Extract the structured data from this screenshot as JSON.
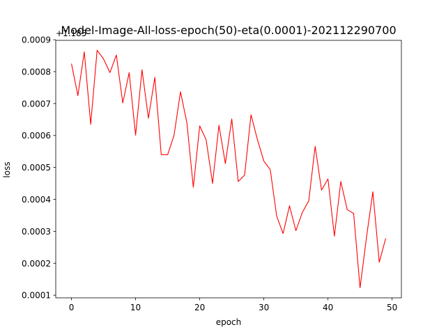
{
  "chart_data": {
    "type": "line",
    "title": "Model-Image-All-loss-epoch(50)-eta(0.0001)-202112290700",
    "xlabel": "epoch",
    "ylabel": "loss",
    "y_offset_label": "+1.185",
    "xlim": [
      -2.45,
      51.45
    ],
    "ylim": [
      9.17e-05,
      0.000898
    ],
    "x_ticks": [
      0,
      10,
      20,
      30,
      40,
      50
    ],
    "y_ticks": [
      0.0001,
      0.0002,
      0.0003,
      0.0004,
      0.0005,
      0.0006,
      0.0007,
      0.0008,
      0.0009
    ],
    "y_tick_labels": [
      "0.0001",
      "0.0002",
      "0.0003",
      "0.0004",
      "0.0005",
      "0.0006",
      "0.0007",
      "0.0008",
      "0.0009"
    ],
    "grid": false,
    "series": [
      {
        "color": "#ff0000",
        "x": [
          0,
          1,
          2,
          3,
          4,
          5,
          6,
          7,
          8,
          9,
          10,
          11,
          12,
          13,
          14,
          15,
          16,
          17,
          18,
          19,
          20,
          21,
          22,
          23,
          24,
          25,
          26,
          27,
          28,
          29,
          30,
          31,
          32,
          33,
          34,
          35,
          36,
          37,
          38,
          39,
          40,
          41,
          42,
          43,
          44,
          45,
          46,
          47,
          48,
          49
        ],
        "values": [
          0.000825,
          0.000725,
          0.000862,
          0.000635,
          0.000867,
          0.00084,
          0.000797,
          0.000852,
          0.000702,
          0.000797,
          0.000601,
          0.000806,
          0.000654,
          0.000782,
          0.00054,
          0.00054,
          0.000601,
          0.000737,
          0.00064,
          0.000438,
          0.00063,
          0.000587,
          0.00045,
          0.000632,
          0.000512,
          0.000652,
          0.000456,
          0.000476,
          0.000665,
          0.000587,
          0.00052,
          0.000493,
          0.000348,
          0.000293,
          0.00038,
          0.000302,
          0.000359,
          0.000395,
          0.000566,
          0.000429,
          0.000464,
          0.000285,
          0.000456,
          0.000368,
          0.000356,
          0.000123,
          0.00028,
          0.000424,
          0.000203,
          0.000278
        ]
      }
    ]
  }
}
